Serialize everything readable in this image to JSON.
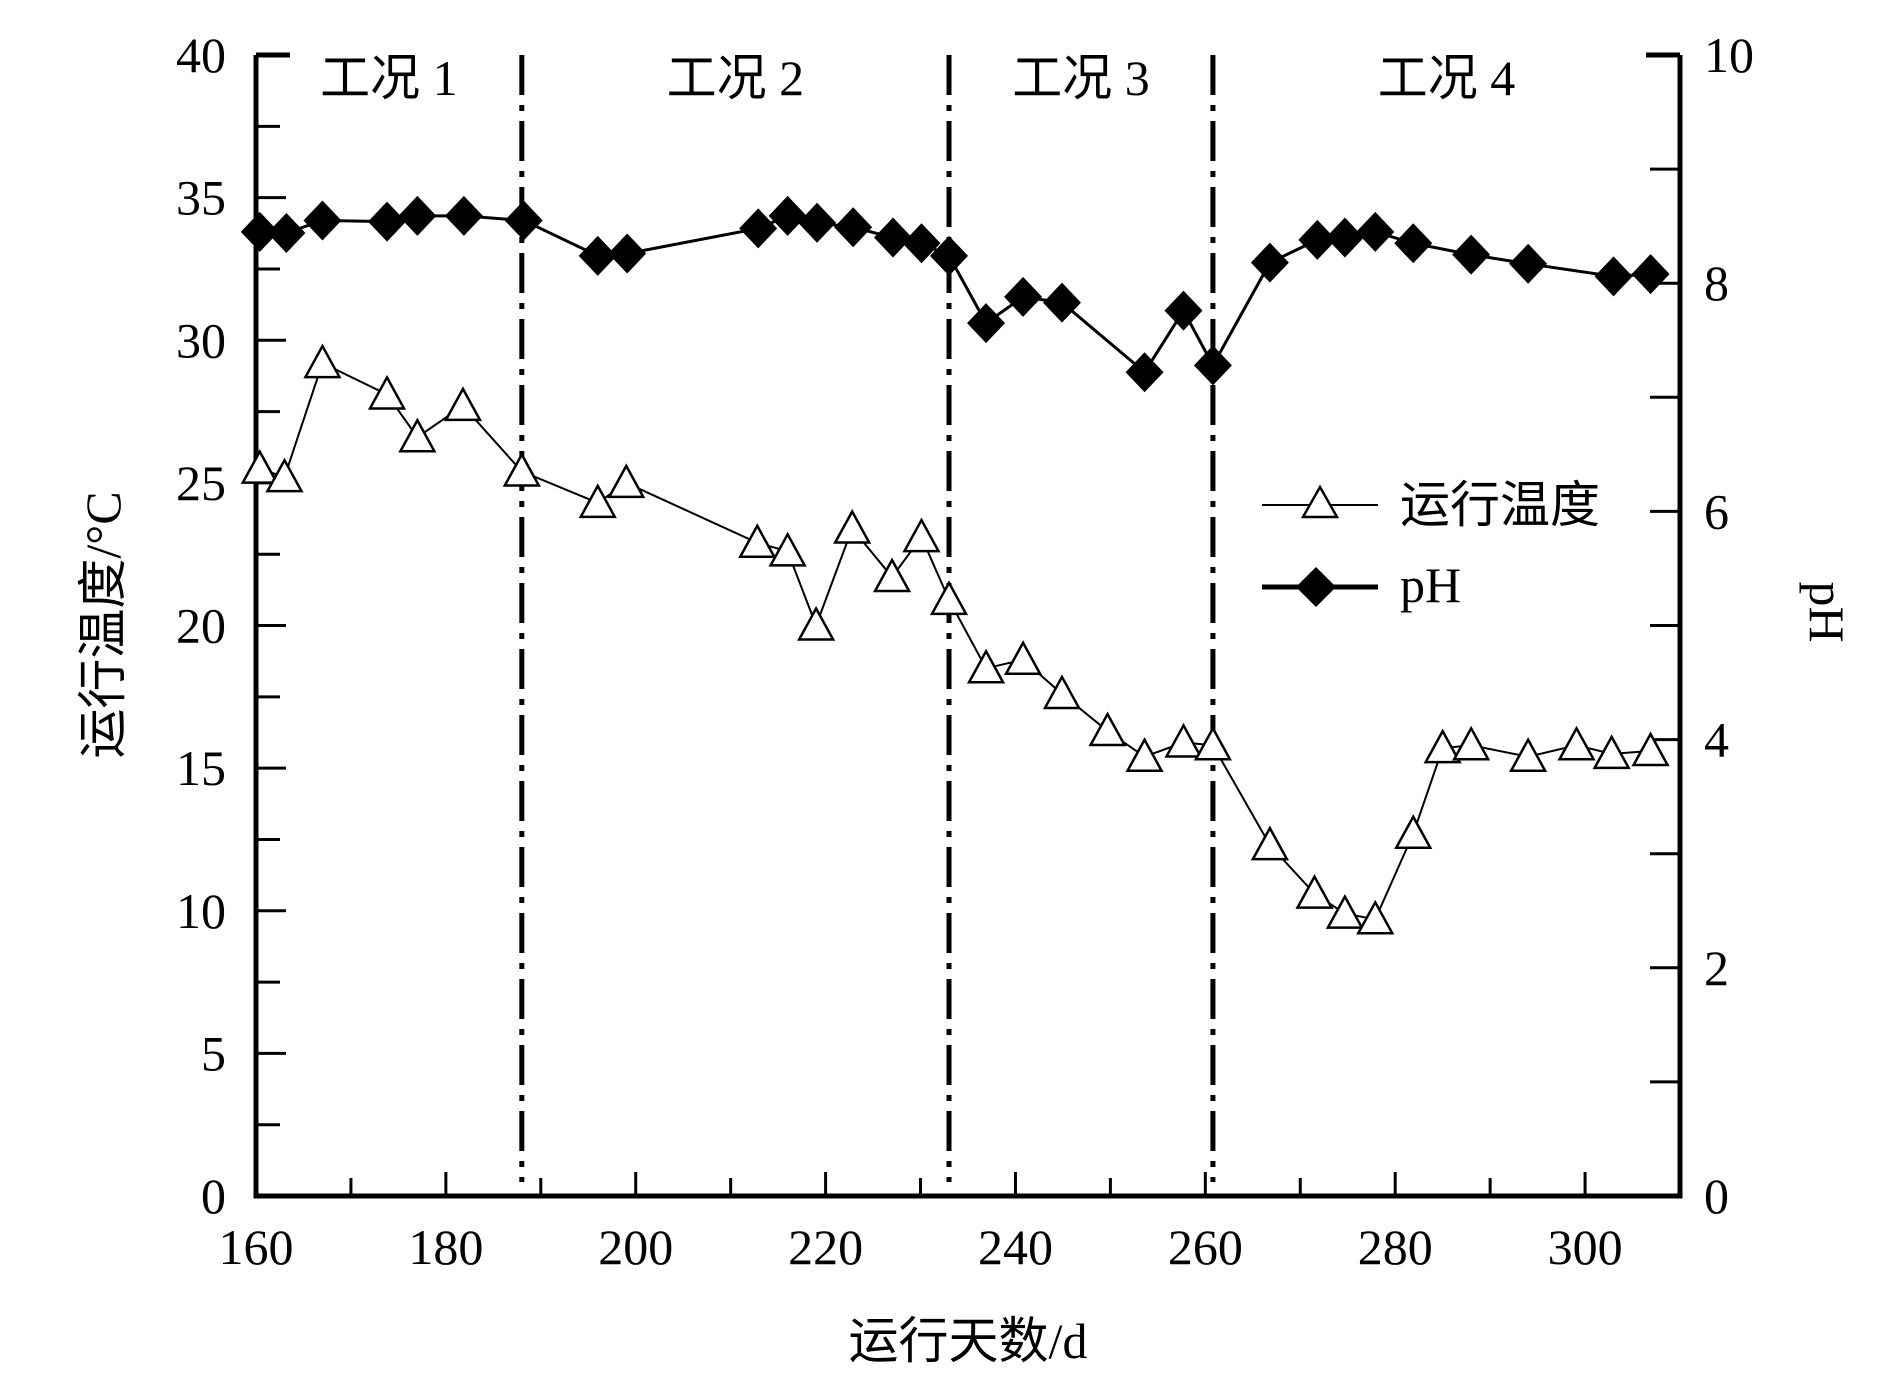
{
  "chart_data": {
    "type": "line",
    "title": "",
    "xlabel": "运行天数/d",
    "ylabel": "运行温度/°C",
    "y2label": "pH",
    "xlim": [
      160,
      310
    ],
    "ylim": [
      0,
      40
    ],
    "y2lim": [
      0,
      10
    ],
    "xticks": [
      160,
      180,
      200,
      220,
      240,
      260,
      280,
      300
    ],
    "yticks": [
      0,
      5,
      10,
      15,
      20,
      25,
      30,
      35,
      40
    ],
    "y2ticks": [
      0,
      2,
      4,
      6,
      8,
      10
    ],
    "grid": false,
    "legend_position": "center-right",
    "phases": [
      {
        "label": "工况 1",
        "start": 160,
        "end": 188
      },
      {
        "label": "工况 2",
        "start": 188,
        "end": 233
      },
      {
        "label": "工况 3",
        "start": 233,
        "end": 260.8
      },
      {
        "label": "工况 4",
        "start": 260.8,
        "end": 310
      }
    ],
    "dividers": [
      188,
      233,
      260.8
    ],
    "series": [
      {
        "name": "运行温度",
        "axis": "left",
        "marker": "open-triangle",
        "x": [
          160.4,
          163,
          167,
          173.8,
          177,
          181.8,
          188,
          196,
          199,
          212.8,
          216,
          219,
          222.8,
          227,
          230.1,
          233,
          236.9,
          240.8,
          244.9,
          249.7,
          253.6,
          257.7,
          260.8,
          266.8,
          271.5,
          274.7,
          277.9,
          281.9,
          285,
          288,
          294,
          299.1,
          302.8,
          306.9
        ],
        "y": [
          25.5,
          25.2,
          29.2,
          28.1,
          26.6,
          27.7,
          25.4,
          24.3,
          25.0,
          22.9,
          22.6,
          20.0,
          23.4,
          21.7,
          23.1,
          20.9,
          18.5,
          18.8,
          17.6,
          16.3,
          15.4,
          15.9,
          15.8,
          12.3,
          10.6,
          9.9,
          9.7,
          12.7,
          15.7,
          15.8,
          15.4,
          15.8,
          15.5,
          15.6
        ]
      },
      {
        "name": "pH",
        "axis": "right",
        "marker": "filled-diamond",
        "x": [
          160.4,
          163.2,
          167,
          173.8,
          177,
          181.9,
          188.2,
          196,
          199.1,
          212.9,
          216,
          219.1,
          222.9,
          227.1,
          230.1,
          233,
          236.9,
          240.8,
          244.9,
          253.6,
          257.7,
          260.8,
          266.8,
          271.8,
          274.7,
          277.9,
          281.9,
          288,
          294,
          303,
          306.9
        ],
        "y": [
          8.45,
          8.44,
          8.55,
          8.54,
          8.59,
          8.59,
          8.55,
          8.24,
          8.26,
          8.48,
          8.59,
          8.53,
          8.49,
          8.4,
          8.35,
          8.24,
          7.65,
          7.88,
          7.83,
          7.22,
          7.76,
          7.28,
          8.18,
          8.38,
          8.4,
          8.45,
          8.35,
          8.25,
          8.17,
          8.06,
          8.08
        ]
      }
    ]
  }
}
